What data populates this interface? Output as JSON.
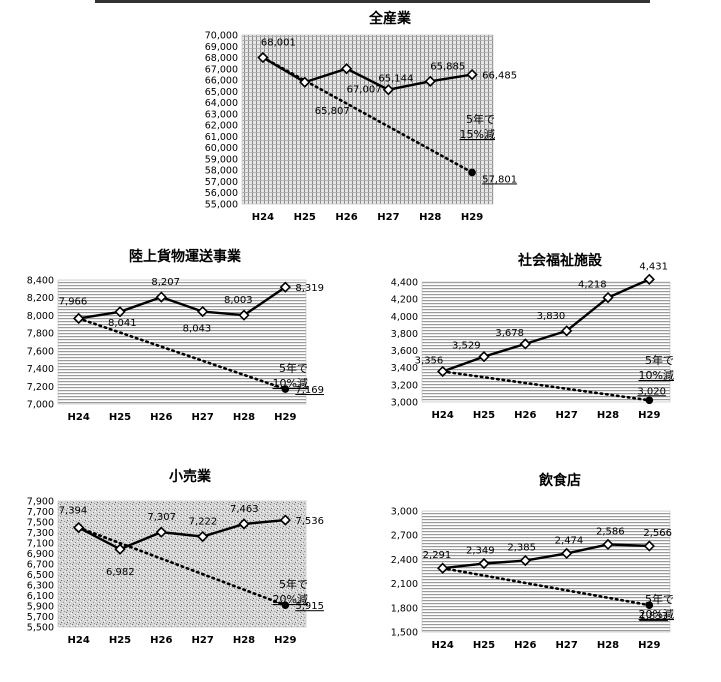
{
  "chart_data": [
    {
      "id": "all",
      "type": "line",
      "title": "全産業",
      "categories": [
        "H24",
        "H25",
        "H26",
        "H27",
        "H28",
        "H29"
      ],
      "series": [
        {
          "values": [
            68001,
            65807,
            67007,
            65144,
            65885,
            66485
          ],
          "style": "solid",
          "marker": "diamond"
        },
        {
          "x": [
            "H24",
            "H29"
          ],
          "values": [
            68001,
            57801
          ],
          "style": "dotted",
          "marker": "circle"
        }
      ],
      "data_labels": [
        "68,001",
        "65,807",
        "67,007",
        "65,144",
        "65,885",
        "66,485"
      ],
      "forecast_label": "57,801",
      "annotation": [
        "5年で",
        "15%減"
      ],
      "ylim": [
        55000,
        70000
      ],
      "ytick_step": 1000,
      "yticks": [
        "55,000",
        "56,000",
        "57,000",
        "58,000",
        "59,000",
        "60,000",
        "61,000",
        "62,000",
        "63,000",
        "64,000",
        "65,000",
        "66,000",
        "67,000",
        "68,000",
        "69,000",
        "70,000"
      ]
    },
    {
      "id": "freight",
      "type": "line",
      "title": "陸上貨物運送事業",
      "categories": [
        "H24",
        "H25",
        "H26",
        "H27",
        "H28",
        "H29"
      ],
      "series": [
        {
          "values": [
            7966,
            8041,
            8207,
            8043,
            8003,
            8319
          ],
          "style": "solid",
          "marker": "diamond"
        },
        {
          "x": [
            "H24",
            "H29"
          ],
          "values": [
            7966,
            7169
          ],
          "style": "dotted",
          "marker": "circle"
        }
      ],
      "data_labels": [
        "7,966",
        "8,041",
        "8,207",
        "8,043",
        "8,003",
        "8,319"
      ],
      "forecast_label": "7,169",
      "annotation": [
        "5年で",
        "10%減"
      ],
      "ylim": [
        7000,
        8400
      ],
      "ytick_step": 200,
      "yticks": [
        "7,000",
        "7,200",
        "7,400",
        "7,600",
        "7,800",
        "8,000",
        "8,200",
        "8,400"
      ]
    },
    {
      "id": "welfare",
      "type": "line",
      "title": "社会福祉施設",
      "categories": [
        "H24",
        "H25",
        "H26",
        "H27",
        "H28",
        "H29"
      ],
      "series": [
        {
          "values": [
            3356,
            3529,
            3678,
            3830,
            4218,
            4431
          ],
          "style": "solid",
          "marker": "diamond"
        },
        {
          "x": [
            "H24",
            "H29"
          ],
          "values": [
            3356,
            3020
          ],
          "style": "dotted",
          "marker": "circle"
        }
      ],
      "data_labels": [
        "3,356",
        "3,529",
        "3,678",
        "3,830",
        "4,218",
        "4,431"
      ],
      "forecast_label": "3,020",
      "annotation": [
        "5年で",
        "10%減"
      ],
      "ylim": [
        3000,
        4400
      ],
      "ytick_step": 200,
      "yticks": [
        "3,000",
        "3,200",
        "3,400",
        "3,600",
        "3,800",
        "4,000",
        "4,200",
        "4,400"
      ]
    },
    {
      "id": "retail",
      "type": "line",
      "title": "小売業",
      "categories": [
        "H24",
        "H25",
        "H26",
        "H27",
        "H28",
        "H29"
      ],
      "series": [
        {
          "values": [
            7394,
            6982,
            7307,
            7222,
            7463,
            7536
          ],
          "style": "solid",
          "marker": "diamond"
        },
        {
          "x": [
            "H24",
            "H29"
          ],
          "values": [
            7394,
            5915
          ],
          "style": "dotted",
          "marker": "circle"
        }
      ],
      "data_labels": [
        "7,394",
        "6,982",
        "7,307",
        "7,222",
        "7,463",
        "7,536"
      ],
      "forecast_label": "5,915",
      "annotation": [
        "5年で",
        "20%減"
      ],
      "ylim": [
        5500,
        7900
      ],
      "ytick_step": 200,
      "yticks": [
        "5,500",
        "5,700",
        "5,900",
        "6,100",
        "6,300",
        "6,500",
        "6,700",
        "6,900",
        "7,100",
        "7,300",
        "7,500",
        "7,700",
        "7,900"
      ]
    },
    {
      "id": "restaurant",
      "type": "line",
      "title": "飲食店",
      "categories": [
        "H24",
        "H25",
        "H26",
        "H27",
        "H28",
        "H29"
      ],
      "series": [
        {
          "values": [
            2291,
            2349,
            2385,
            2474,
            2586,
            2566
          ],
          "style": "solid",
          "marker": "diamond"
        },
        {
          "x": [
            "H24",
            "H29"
          ],
          "values": [
            2291,
            1833
          ],
          "style": "dotted",
          "marker": "circle"
        }
      ],
      "data_labels": [
        "2,291",
        "2,349",
        "2,385",
        "2,474",
        "2,586",
        "2,566"
      ],
      "forecast_label": "1,833",
      "annotation": [
        "5年で",
        "20%減"
      ],
      "ylim": [
        1500,
        3000
      ],
      "ytick_step": 300,
      "yticks": [
        "1,500",
        "1,800",
        "2,100",
        "2,400",
        "2,700",
        "3,000"
      ]
    }
  ]
}
